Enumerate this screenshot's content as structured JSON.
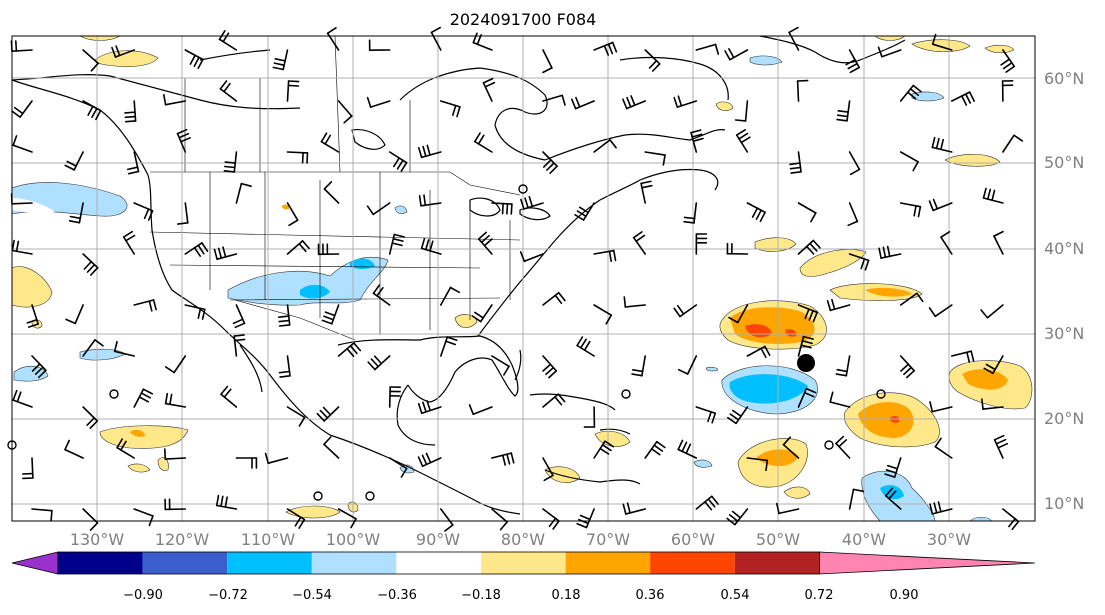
{
  "title": "2024091700 F084",
  "lon_labels": [
    "130°W",
    "120°W",
    "110°W",
    "100°W",
    "90°W",
    "80°W",
    "70°W",
    "60°W",
    "50°W",
    "40°W",
    "30°W"
  ],
  "lat_labels": [
    "60°N",
    "50°N",
    "40°N",
    "30°N",
    "20°N",
    "10°N"
  ],
  "colorbar": {
    "ticks": [
      "−0.90",
      "−0.72",
      "−0.54",
      "−0.36",
      "−0.18",
      "0.18",
      "0.36",
      "0.54",
      "0.72",
      "0.90"
    ],
    "colors": [
      "#9932cc",
      "#00008b",
      "#3a5fcd",
      "#00bfff",
      "#b0e0ff",
      "#ffffff",
      "#ffe88a",
      "#ffa500",
      "#ff4500",
      "#b22222",
      "#ff85b0"
    ]
  },
  "map": {
    "ocean_color": "#ffffff",
    "coastline_color": "#000000",
    "grid_color": "#b0b0b0"
  }
}
